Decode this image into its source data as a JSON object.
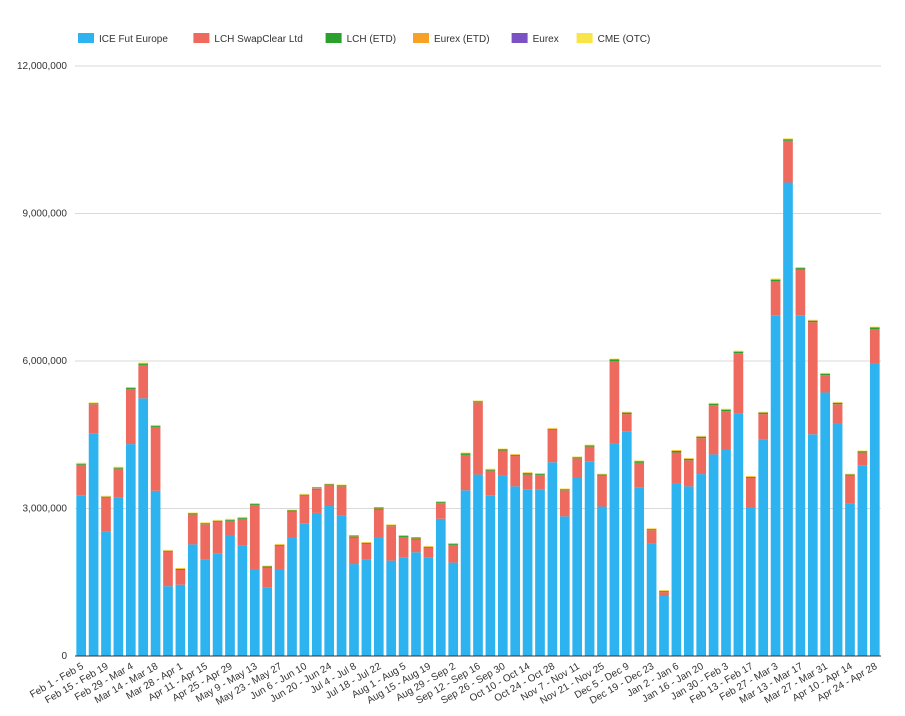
{
  "chart_data": {
    "type": "bar",
    "stacked": true,
    "legend_position": "top-left",
    "grid": true,
    "ylim": [
      0,
      12000000
    ],
    "yticks": [
      0,
      3000000,
      6000000,
      9000000,
      12000000
    ],
    "ytick_labels": [
      "0",
      "3,000,000",
      "6,000,000",
      "9,000,000",
      "12,000,000"
    ],
    "categories": [
      "Feb 1 - Feb 5",
      "",
      "Feb 15 - Feb 19",
      "",
      "Feb 29 - Mar 4",
      "",
      "Mar 14 - Mar 18",
      "",
      "Mar 28 - Apr 1",
      "",
      "Apr 11 - Apr 15",
      "",
      "Apr 25 - Apr 29",
      "",
      "May 9 - May 13",
      "",
      "May 23 - May 27",
      "",
      "Jun 6 - Jun 10",
      "",
      "Jun 20 - Jun 24",
      "",
      "Jul 4 - Jul 8",
      "",
      "Jul 18 - Jul 22",
      "",
      "Aug 1 - Aug 5",
      "",
      "Aug 15 - Aug 19",
      "",
      "Aug 29 - Sep 2",
      "",
      "Sep 12 - Sep 16",
      "",
      "Sep 26 - Sep 30",
      "",
      "Oct 10 - Oct 14",
      "",
      "Oct 24 - Oct 28",
      "",
      "Nov 7 - Nov 11",
      "",
      "Nov 21 - Nov 25",
      "",
      "Dec 5 - Dec 9",
      "",
      "Dec 19 - Dec 23",
      "",
      "Jan 2 - Jan 6",
      "",
      "Jan 16 - Jan 20",
      "",
      "Jan 30 - Feb 3",
      "",
      "Feb 13 - Feb 17",
      "",
      "Feb 27 - Mar 3",
      "",
      "Mar 13 - Mar 17",
      "",
      "Mar 27 - Mar 31",
      "",
      "Apr 10 - Apr 14",
      "",
      "Apr 24 - Apr 28"
    ],
    "series": [
      {
        "name": "ICE Fut Europe",
        "color": "#2db3ef",
        "values": [
          3270000,
          4520000,
          2540000,
          3220000,
          4310000,
          5240000,
          3360000,
          1420000,
          1450000,
          2270000,
          1970000,
          2080000,
          2450000,
          2250000,
          1770000,
          1400000,
          1770000,
          2420000,
          2700000,
          2910000,
          3050000,
          2860000,
          1870000,
          1970000,
          2420000,
          1940000,
          2000000,
          2110000,
          2000000,
          2790000,
          1900000,
          3370000,
          3690000,
          3270000,
          3680000,
          3450000,
          3390000,
          3380000,
          3940000,
          2840000,
          3620000,
          3960000,
          3040000,
          4320000,
          4570000,
          3430000,
          2280000,
          1220000,
          3500000,
          3450000,
          3700000,
          4100000,
          4200000,
          4940000,
          3020000,
          4400000,
          6920000,
          9630000,
          6930000,
          4510000,
          5360000,
          4730000,
          3110000,
          3880000,
          5950000
        ]
      },
      {
        "name": "LCH SwapClear Ltd",
        "color": "#ee6a5f",
        "values": [
          620000,
          600000,
          680000,
          590000,
          1120000,
          680000,
          1300000,
          700000,
          300000,
          610000,
          710000,
          650000,
          300000,
          540000,
          1300000,
          400000,
          470000,
          520000,
          560000,
          470000,
          420000,
          590000,
          540000,
          310000,
          560000,
          700000,
          420000,
          260000,
          200000,
          320000,
          360000,
          720000,
          1470000,
          500000,
          500000,
          620000,
          300000,
          300000,
          660000,
          530000,
          400000,
          300000,
          630000,
          1680000,
          350000,
          500000,
          280000,
          80000,
          640000,
          530000,
          730000,
          1000000,
          780000,
          1220000,
          600000,
          520000,
          700000,
          850000,
          930000,
          2280000,
          350000,
          390000,
          560000,
          260000,
          700000
        ]
      },
      {
        "name": "LCH (ETD)",
        "color": "#2ca02c",
        "values": [
          20000,
          20000,
          20000,
          20000,
          20000,
          20000,
          20000,
          20000,
          20000,
          20000,
          20000,
          20000,
          20000,
          20000,
          20000,
          20000,
          20000,
          20000,
          20000,
          20000,
          20000,
          20000,
          20000,
          20000,
          20000,
          20000,
          20000,
          20000,
          20000,
          20000,
          20000,
          20000,
          20000,
          20000,
          20000,
          20000,
          30000,
          20000,
          20000,
          20000,
          20000,
          20000,
          20000,
          30000,
          30000,
          30000,
          20000,
          20000,
          30000,
          30000,
          30000,
          30000,
          30000,
          30000,
          20000,
          30000,
          30000,
          30000,
          30000,
          30000,
          30000,
          30000,
          20000,
          20000,
          30000
        ]
      },
      {
        "name": "Eurex (ETD)",
        "color": "#f7a125",
        "values": [
          10000,
          10000,
          10000,
          10000,
          10000,
          20000,
          10000,
          10000,
          10000,
          10000,
          10000,
          10000,
          10000,
          10000,
          10000,
          10000,
          10000,
          10000,
          10000,
          10000,
          10000,
          10000,
          10000,
          10000,
          10000,
          10000,
          10000,
          10000,
          10000,
          10000,
          10000,
          10000,
          10000,
          10000,
          10000,
          10000,
          10000,
          10000,
          10000,
          10000,
          10000,
          10000,
          10000,
          10000,
          10000,
          10000,
          10000,
          10000,
          10000,
          10000,
          10000,
          10000,
          10000,
          10000,
          10000,
          10000,
          20000,
          10000,
          10000,
          10000,
          10000,
          10000,
          10000,
          10000,
          10000
        ]
      },
      {
        "name": "Eurex",
        "color": "#7b52c4",
        "values": [
          0,
          0,
          0,
          0,
          0,
          0,
          0,
          0,
          0,
          0,
          0,
          0,
          0,
          0,
          0,
          0,
          0,
          0,
          0,
          20000,
          0,
          0,
          10000,
          0,
          10000,
          0,
          0,
          10000,
          0,
          0,
          0,
          10000,
          0,
          0,
          0,
          0,
          0,
          0,
          0,
          0,
          0,
          0,
          0,
          0,
          0,
          0,
          0,
          0,
          0,
          0,
          0,
          0,
          0,
          0,
          0,
          0,
          0,
          0,
          0,
          0,
          0,
          0,
          0,
          0,
          0
        ]
      },
      {
        "name": "CME (OTC)",
        "color": "#f9e547",
        "values": [
          10000,
          10000,
          10000,
          10000,
          10000,
          10000,
          10000,
          10000,
          10000,
          10000,
          10000,
          10000,
          10000,
          10000,
          10000,
          10000,
          10000,
          10000,
          10000,
          10000,
          10000,
          10000,
          10000,
          10000,
          10000,
          10000,
          10000,
          10000,
          10000,
          10000,
          10000,
          10000,
          10000,
          10000,
          10000,
          10000,
          10000,
          10000,
          10000,
          10000,
          10000,
          10000,
          10000,
          10000,
          10000,
          10000,
          10000,
          10000,
          10000,
          10000,
          10000,
          10000,
          10000,
          10000,
          10000,
          10000,
          10000,
          10000,
          10000,
          10000,
          10000,
          10000,
          10000,
          10000,
          10000
        ]
      }
    ]
  }
}
